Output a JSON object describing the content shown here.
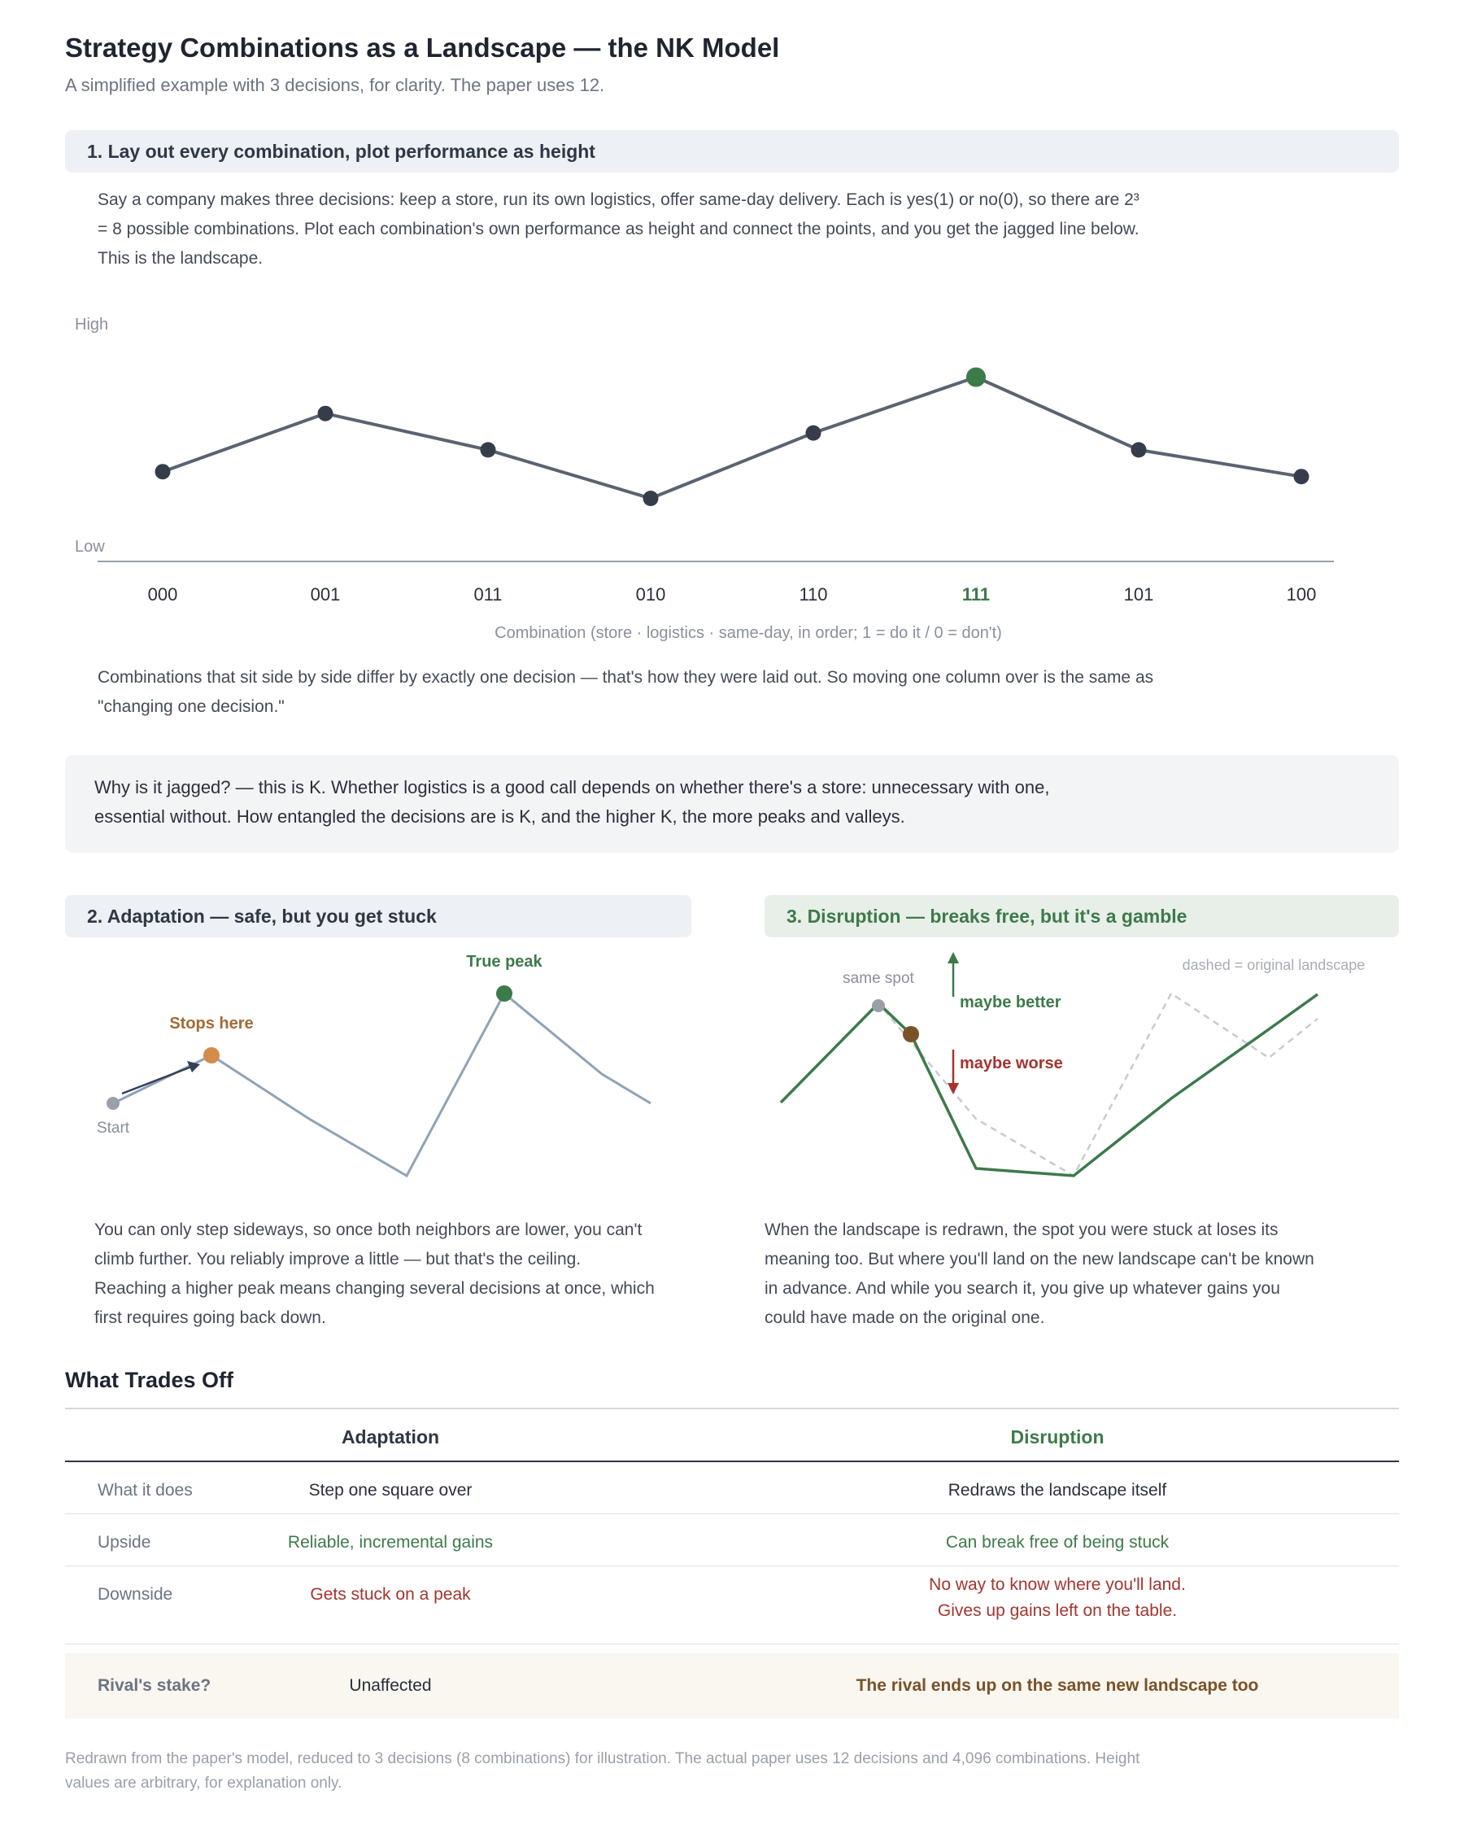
{
  "title": "Strategy Combinations as a Landscape — the NK Model",
  "subtitle": "A simplified example with 3 decisions, for clarity. The paper uses 12.",
  "section1": {
    "heading": "1. Lay out every combination, plot performance as height",
    "intro_line1": "Say a company makes three decisions: keep a store, run its own logistics, offer same-day delivery. Each is yes(1) or no(0), so there are 2³",
    "intro_line2": "= 8 possible combinations. Plot each combination's own performance as height and connect the points, and you get the jagged line below.",
    "intro_line3": "This is the landscape.",
    "after_line1": "Combinations that sit side by side differ by exactly one decision — that's how they were laid out. So moving one column over is the same as",
    "after_line2": "\"changing one decision.\""
  },
  "chart_data": {
    "type": "line",
    "categories": [
      "000",
      "001",
      "011",
      "010",
      "110",
      "111",
      "101",
      "100"
    ],
    "values": [
      3.7,
      6.1,
      4.6,
      2.6,
      5.3,
      7.6,
      4.6,
      3.5
    ],
    "highlight_category": "111",
    "ylim": [
      0,
      10
    ],
    "y_tick_labels": {
      "high": "High",
      "low": "Low"
    },
    "xlabel": "Combination (store · logistics · same-day, in order; 1 = do it / 0 = don't)",
    "ylabel": "",
    "grid": false,
    "colors": {
      "line": "#5b6270",
      "point": "#353c4a",
      "peak": "#3d7a4a"
    }
  },
  "callout": {
    "line1": "Why is it jagged? — this is K. Whether logistics is a good call depends on whether there's a store: unnecessary with one,",
    "line2": "essential without. How entangled the decisions are is K, and the higher K, the more peaks and valleys."
  },
  "section2": {
    "heading": "2. Adaptation — safe, but you get stuck",
    "label_stops": "Stops here",
    "label_true_peak": "True peak",
    "label_start": "Start",
    "line1": "You can only step sideways, so once both neighbors are lower, you can't",
    "line2": "climb further. You reliably improve a little — but that's the ceiling.",
    "line3": "Reaching a higher peak means changing several decisions at once, which",
    "line4": "first requires going back down."
  },
  "section3": {
    "heading": "3. Disruption — breaks free, but it's a gamble",
    "label_same_spot": "same spot",
    "label_better": "maybe better",
    "label_worse": "maybe worse",
    "label_dashed": "dashed = original landscape",
    "line1": "When the landscape is redrawn, the spot you were stuck at loses its",
    "line2": "meaning too. But where you'll land on the new landscape can't be known",
    "line3": "in advance. And while you search it, you give up whatever gains you",
    "line4": "could have made on the original one."
  },
  "tradeoffs": {
    "heading": "What Trades Off",
    "col_adaptation": "Adaptation",
    "col_disruption": "Disruption",
    "rows": [
      {
        "label": "What it does",
        "adaptation": "Step one square over",
        "disruption": "Redraws the landscape itself"
      },
      {
        "label": "Upside",
        "adaptation": "Reliable, incremental gains",
        "disruption": "Can break free of being stuck"
      },
      {
        "label": "Downside",
        "adaptation": "Gets stuck on a peak",
        "disruption_line1": "No way to know where you'll land.",
        "disruption_line2": "Gives up gains left on the table."
      }
    ],
    "stake": {
      "label": "Rival's stake?",
      "adaptation": "Unaffected",
      "disruption": "The rival ends up on the same new landscape too"
    }
  },
  "footnote": {
    "line1": "Redrawn from the paper's model, reduced to 3 decisions (8 combinations) for illustration. The actual paper uses 12 decisions and 4,096 combinations. Height",
    "line2": "values are arbitrary, for explanation only."
  },
  "colors": {
    "green": "#3d7a4a",
    "red": "#a3352f",
    "orange": "#d58b4a",
    "brown": "#7a5228",
    "slate_line": "#8fa3b8"
  }
}
